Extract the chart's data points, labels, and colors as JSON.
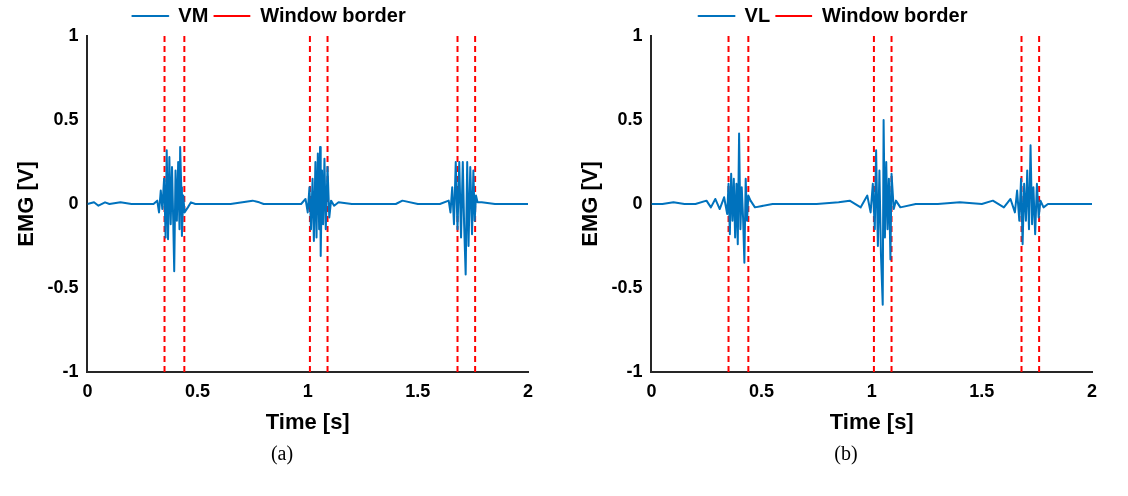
{
  "chart_data": [
    {
      "type": "line",
      "xlabel": "Time [s]",
      "ylabel": "EMG [V]",
      "xlim": [
        0,
        2
      ],
      "ylim": [
        -1,
        1
      ],
      "xticks": [
        0,
        0.5,
        1,
        1.5,
        2
      ],
      "yticks": [
        -1,
        -0.5,
        0,
        0.5,
        1
      ],
      "grid": false,
      "legend": "top",
      "marker": "none",
      "annotations": [
        "(a)"
      ],
      "series": [
        {
          "name": "VM",
          "color": "#0072bd",
          "line_style": "solid",
          "x": [
            0,
            0.03,
            0.05,
            0.08,
            0.1,
            0.15,
            0.2,
            0.25,
            0.3,
            0.317,
            0.325,
            0.333,
            0.34,
            0.348,
            0.355,
            0.36,
            0.366,
            0.372,
            0.378,
            0.384,
            0.39,
            0.394,
            0.4,
            0.406,
            0.412,
            0.418,
            0.421,
            0.426,
            0.429,
            0.435,
            0.441,
            0.456,
            0.47,
            0.49,
            0.55,
            0.65,
            0.75,
            0.78,
            0.8,
            0.9,
            0.97,
            0.99,
            1.0,
            1.008,
            1.015,
            1.022,
            1.028,
            1.035,
            1.04,
            1.046,
            1.052,
            1.056,
            1.059,
            1.065,
            1.07,
            1.076,
            1.082,
            1.09,
            1.098,
            1.106,
            1.12,
            1.14,
            1.2,
            1.3,
            1.4,
            1.43,
            1.5,
            1.6,
            1.64,
            1.648,
            1.656,
            1.664,
            1.672,
            1.68,
            1.688,
            1.696,
            1.704,
            1.71,
            1.717,
            1.724,
            1.73,
            1.738,
            1.746,
            1.752,
            1.758,
            1.764,
            1.771,
            1.79,
            1.85,
            1.95,
            2
          ],
          "values": [
            0,
            0.01,
            -0.01,
            0.01,
            0,
            0.01,
            0,
            0,
            0,
            0.02,
            -0.05,
            0.08,
            -0.03,
            0.15,
            -0.2,
            0.32,
            -0.21,
            0.28,
            -0.12,
            0.22,
            -0.13,
            -0.4,
            0.2,
            -0.1,
            0.25,
            -0.15,
            0.34,
            0.1,
            -0.19,
            0.05,
            -0.05,
            -0.02,
            0.01,
            0,
            0,
            0,
            0.02,
            0.01,
            0,
            0,
            0,
            0.03,
            -0.05,
            0.1,
            -0.15,
            0.15,
            -0.22,
            0.25,
            -0.2,
            0.3,
            -0.15,
            0.34,
            -0.31,
            0.2,
            -0.12,
            0.27,
            -0.15,
            0.22,
            -0.08,
            0.02,
            -0.01,
            0.01,
            0,
            0,
            0,
            0.02,
            0,
            0,
            0.02,
            -0.05,
            0.1,
            -0.12,
            0.25,
            -0.15,
            0.25,
            -0.2,
            0.25,
            -0.12,
            -0.42,
            0.25,
            -0.25,
            0.22,
            -0.18,
            0.2,
            -0.1,
            0.05,
            0.01,
            0.01,
            0,
            0,
            0
          ]
        },
        {
          "name": "Window border",
          "color": "#ff0000",
          "line_style": "dashed",
          "x": [
            0.35,
            0.35,
            null,
            0.44,
            0.44,
            null,
            1.01,
            1.01,
            null,
            1.09,
            1.09,
            null,
            1.68,
            1.68,
            null,
            1.76,
            1.76
          ],
          "values": [
            -1,
            1,
            null,
            -1,
            1,
            null,
            -1,
            1,
            null,
            -1,
            1,
            null,
            -1,
            1,
            null,
            -1,
            1
          ]
        }
      ]
    },
    {
      "type": "line",
      "xlabel": "Time [s]",
      "ylabel": "EMG [V]",
      "xlim": [
        0,
        2
      ],
      "ylim": [
        -1,
        1
      ],
      "xticks": [
        0,
        0.5,
        1,
        1.5,
        2
      ],
      "yticks": [
        -1,
        -0.5,
        0,
        0.5,
        1
      ],
      "grid": false,
      "legend": "top",
      "marker": "none",
      "annotations": [
        "(b)"
      ],
      "series": [
        {
          "name": "VL",
          "color": "#0072bd",
          "line_style": "solid",
          "x": [
            0,
            0.05,
            0.1,
            0.15,
            0.2,
            0.25,
            0.27,
            0.29,
            0.31,
            0.33,
            0.344,
            0.35,
            0.356,
            0.362,
            0.368,
            0.374,
            0.38,
            0.386,
            0.392,
            0.398,
            0.404,
            0.41,
            0.416,
            0.422,
            0.428,
            0.434,
            0.44,
            0.45,
            0.47,
            0.55,
            0.65,
            0.75,
            0.85,
            0.9,
            0.95,
            0.98,
            0.995,
            1.005,
            1.014,
            1.02,
            1.028,
            1.035,
            1.042,
            1.05,
            1.054,
            1.06,
            1.066,
            1.072,
            1.078,
            1.085,
            1.09,
            1.1,
            1.11,
            1.13,
            1.2,
            1.3,
            1.4,
            1.5,
            1.55,
            1.6,
            1.63,
            1.65,
            1.66,
            1.67,
            1.678,
            1.685,
            1.692,
            1.7,
            1.706,
            1.714,
            1.721,
            1.728,
            1.734,
            1.742,
            1.75,
            1.758,
            1.766,
            1.78,
            1.8,
            1.9,
            2
          ],
          "values": [
            0,
            0,
            0.01,
            0,
            0,
            0.02,
            -0.02,
            0.03,
            -0.03,
            0.04,
            -0.06,
            0.12,
            -0.18,
            0.18,
            -0.1,
            0.15,
            -0.2,
            0.12,
            -0.24,
            0.42,
            -0.15,
            0.1,
            -0.08,
            -0.35,
            0.15,
            -0.1,
            0.05,
            0.02,
            -0.02,
            0,
            0,
            0,
            0.01,
            0.02,
            -0.02,
            0.05,
            -0.05,
            0.12,
            -0.15,
            0.32,
            -0.25,
            0.2,
            -0.3,
            -0.6,
            0.5,
            -0.2,
            0.25,
            -0.15,
            0.15,
            -0.33,
            0.18,
            -0.03,
            0.02,
            -0.02,
            0,
            0,
            0.01,
            0,
            0.02,
            -0.02,
            0.03,
            -0.05,
            0.08,
            -0.1,
            0.15,
            -0.24,
            0.12,
            -0.1,
            0.2,
            -0.15,
            0.35,
            -0.12,
            0.1,
            -0.18,
            0.12,
            -0.08,
            0.02,
            -0.02,
            0,
            0,
            0
          ]
        },
        {
          "name": "Window border",
          "color": "#ff0000",
          "line_style": "dashed",
          "x": [
            0.35,
            0.35,
            null,
            0.44,
            0.44,
            null,
            1.01,
            1.01,
            null,
            1.09,
            1.09,
            null,
            1.68,
            1.68,
            null,
            1.76,
            1.76
          ],
          "values": [
            -1,
            1,
            null,
            -1,
            1,
            null,
            -1,
            1,
            null,
            -1,
            1,
            null,
            -1,
            1,
            null,
            -1,
            1
          ]
        }
      ]
    }
  ]
}
